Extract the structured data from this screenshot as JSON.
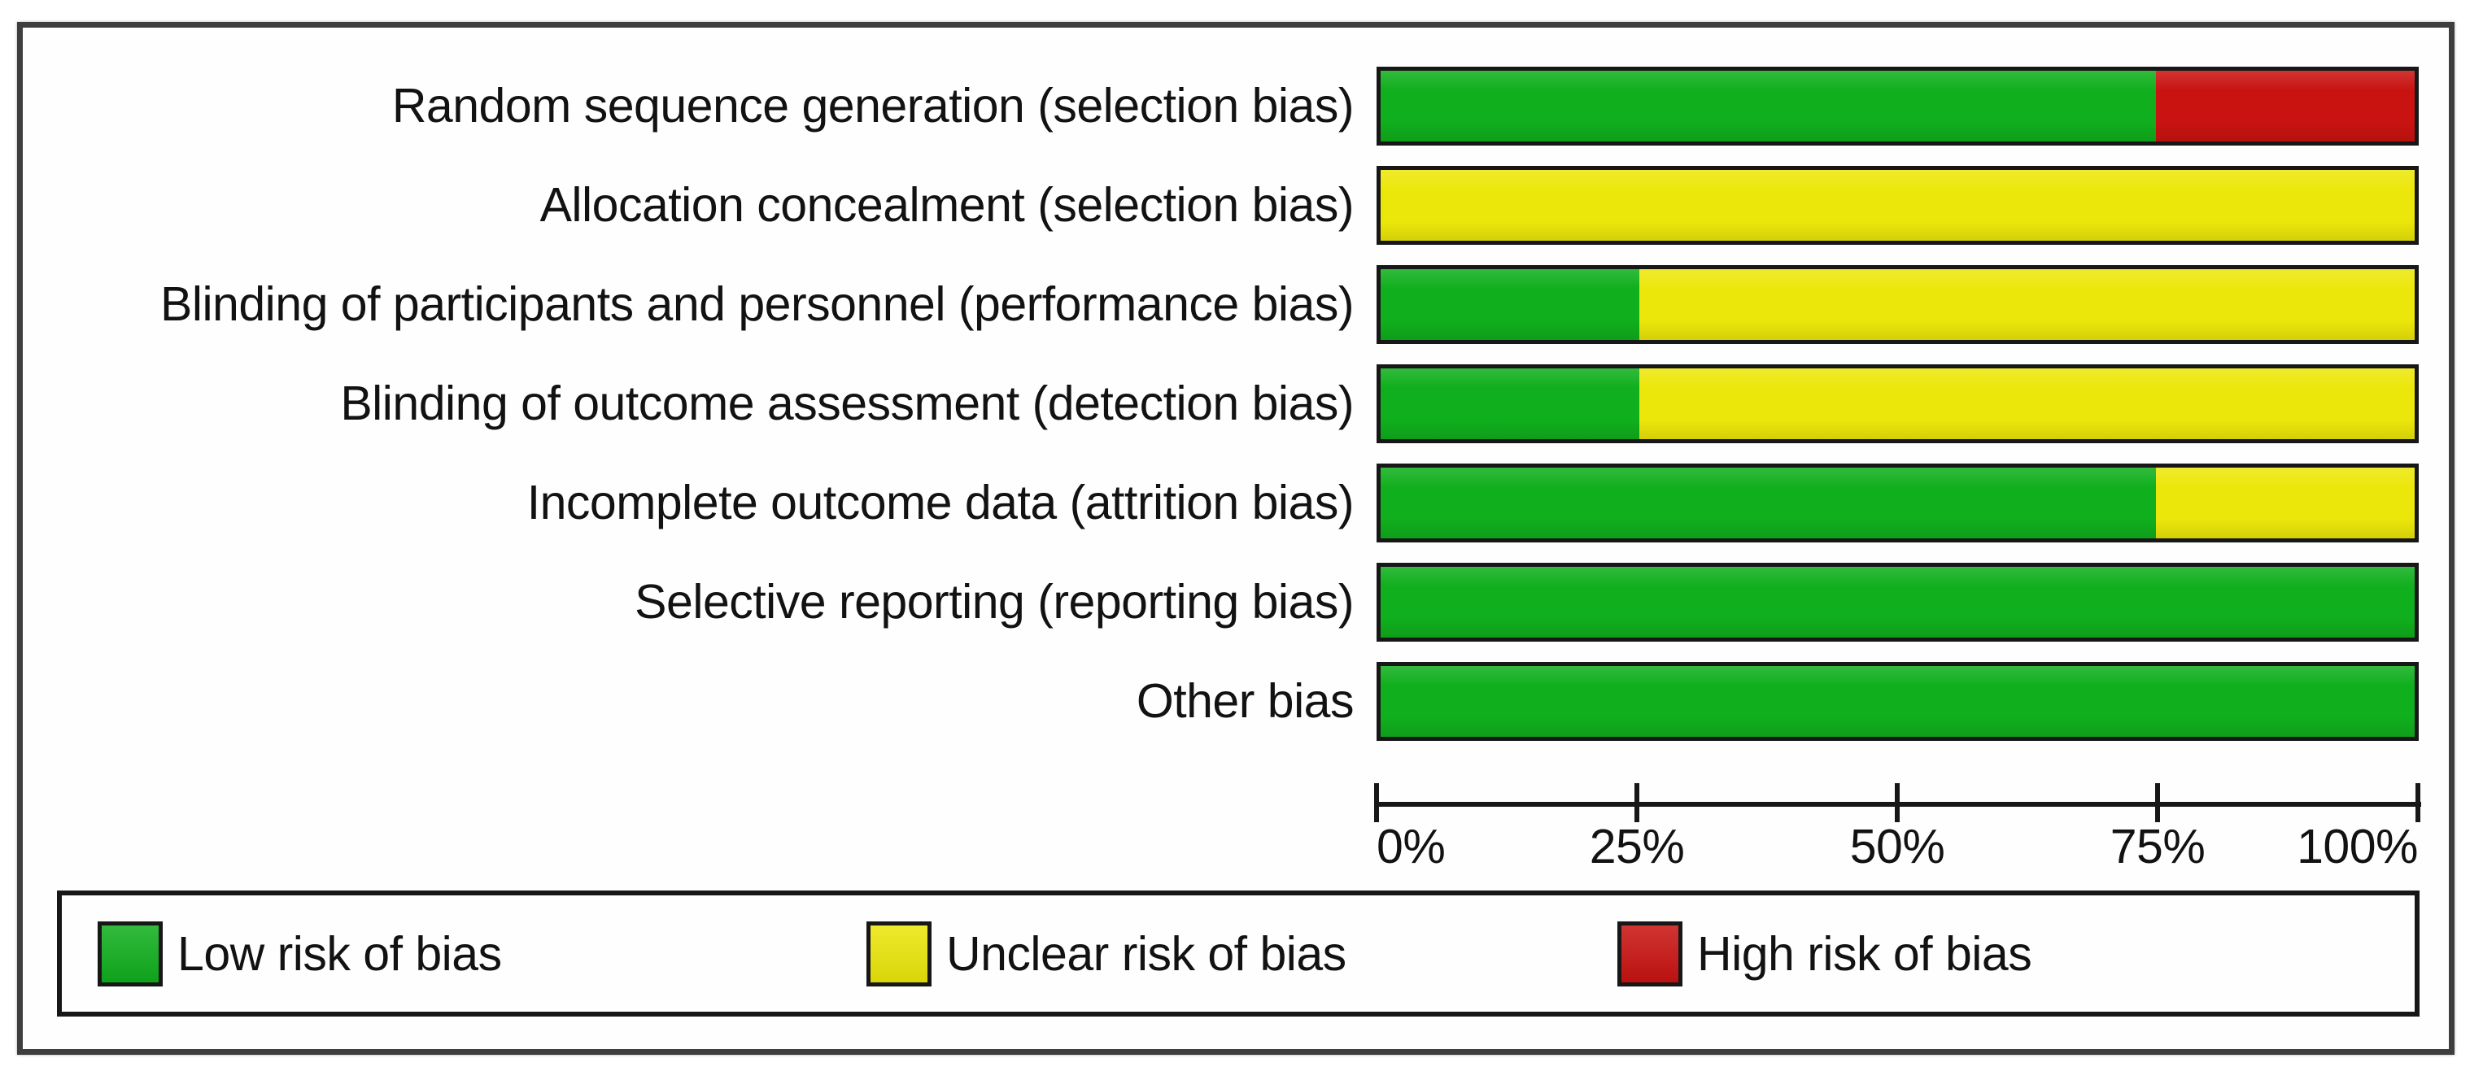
{
  "chart_data": {
    "type": "bar",
    "variant": "stacked-horizontal",
    "title": "",
    "categories": [
      "Random sequence generation (selection bias)",
      "Allocation concealment (selection bias)",
      "Blinding of participants and personnel (performance bias)",
      "Blinding of outcome assessment (detection bias)",
      "Incomplete outcome data (attrition bias)",
      "Selective reporting (reporting bias)",
      "Other bias"
    ],
    "series": [
      {
        "name": "Low risk of bias",
        "color": "#10af1d",
        "values": [
          75,
          0,
          25,
          25,
          75,
          100,
          100
        ]
      },
      {
        "name": "Unclear risk of bias",
        "color": "#ece70a",
        "values": [
          0,
          100,
          75,
          75,
          25,
          0,
          0
        ]
      },
      {
        "name": "High risk of bias",
        "color": "#c91311",
        "values": [
          25,
          0,
          0,
          0,
          0,
          0,
          0
        ]
      }
    ],
    "xlim": [
      0,
      100
    ],
    "x_ticks": [
      "0%",
      "25%",
      "50%",
      "75%",
      "100%"
    ],
    "grid": false,
    "legend_position": "bottom",
    "legend": [
      "Low risk of bias",
      "Unclear risk of bias",
      "High risk of bias"
    ]
  },
  "colors": {
    "bar_border": "#171717",
    "frame_border": "#3e3e3e",
    "legend_border": "#171717",
    "text": "#121212",
    "background": "#ffffff",
    "low_risk": "#10af1d",
    "unclear_risk": "#ece70a",
    "high_risk": "#c91311"
  }
}
